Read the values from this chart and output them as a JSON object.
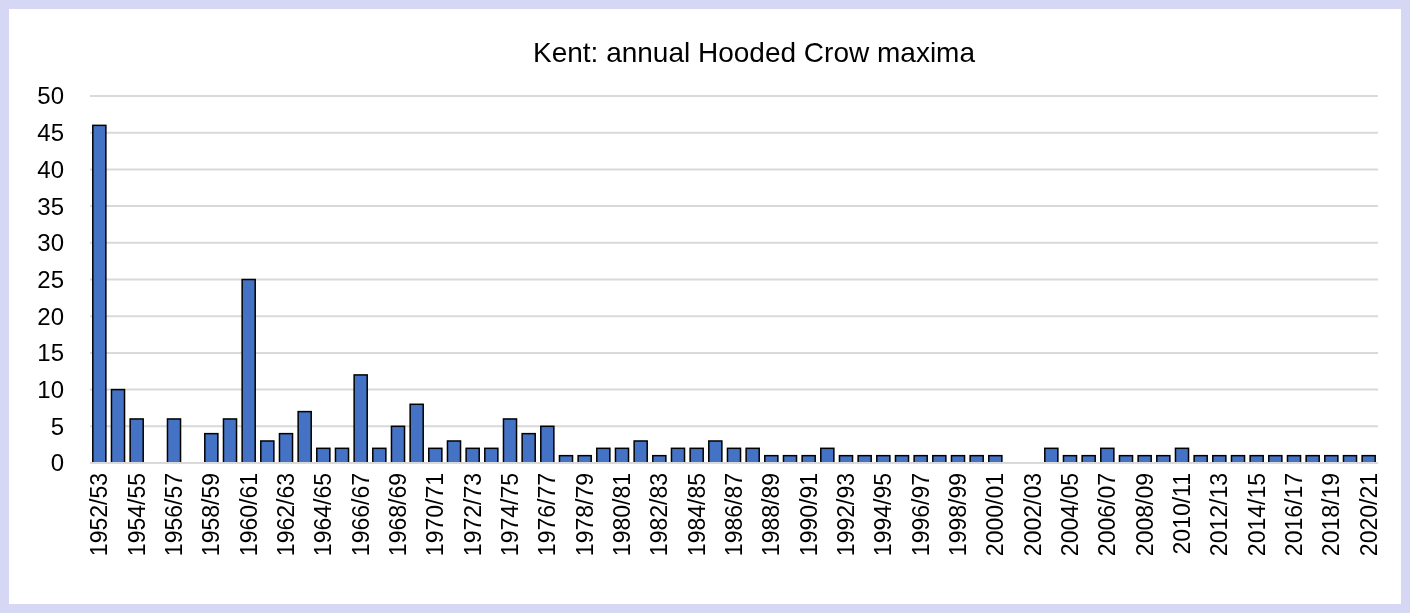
{
  "chart_data": {
    "type": "bar",
    "title": "Kent: annual Hooded Crow maxima",
    "categories": [
      "1952/53",
      null,
      "1954/55",
      null,
      "1956/57",
      null,
      "1958/59",
      null,
      "1960/61",
      null,
      "1962/63",
      null,
      "1964/65",
      null,
      "1966/67",
      null,
      "1968/69",
      null,
      "1970/71",
      null,
      "1972/73",
      null,
      "1974/75",
      null,
      "1976/77",
      null,
      "1978/79",
      null,
      "1980/81",
      null,
      "1982/83",
      null,
      "1984/85",
      null,
      "1986/87",
      null,
      "1988/89",
      null,
      "1990/91",
      null,
      "1992/93",
      null,
      "1994/95",
      null,
      "1996/97",
      null,
      "1998/99",
      null,
      "2000/01",
      null,
      "2002/03",
      null,
      "2004/05",
      null,
      "2006/07",
      null,
      "2008/09",
      null,
      "2010/11",
      null,
      "2012/13",
      null,
      "2014/15",
      null,
      "2016/17",
      null,
      "2018/19",
      null,
      "2020/21"
    ],
    "values": [
      46,
      10,
      6,
      0,
      6,
      0,
      4,
      6,
      25,
      3,
      4,
      7,
      2,
      2,
      12,
      2,
      5,
      8,
      2,
      3,
      2,
      2,
      6,
      4,
      5,
      1,
      1,
      2,
      2,
      3,
      1,
      2,
      2,
      3,
      2,
      2,
      1,
      1,
      1,
      2,
      1,
      1,
      1,
      1,
      1,
      1,
      1,
      1,
      1,
      0,
      0,
      2,
      1,
      1,
      2,
      1,
      1,
      1,
      2,
      1,
      1,
      1,
      1,
      1,
      1,
      1,
      1,
      1,
      1
    ],
    "color": "#4472c4",
    "ylim": [
      0,
      50
    ],
    "yticks": [
      0,
      5,
      10,
      15,
      20,
      25,
      30,
      35,
      40,
      45,
      50
    ],
    "grid": "y"
  }
}
